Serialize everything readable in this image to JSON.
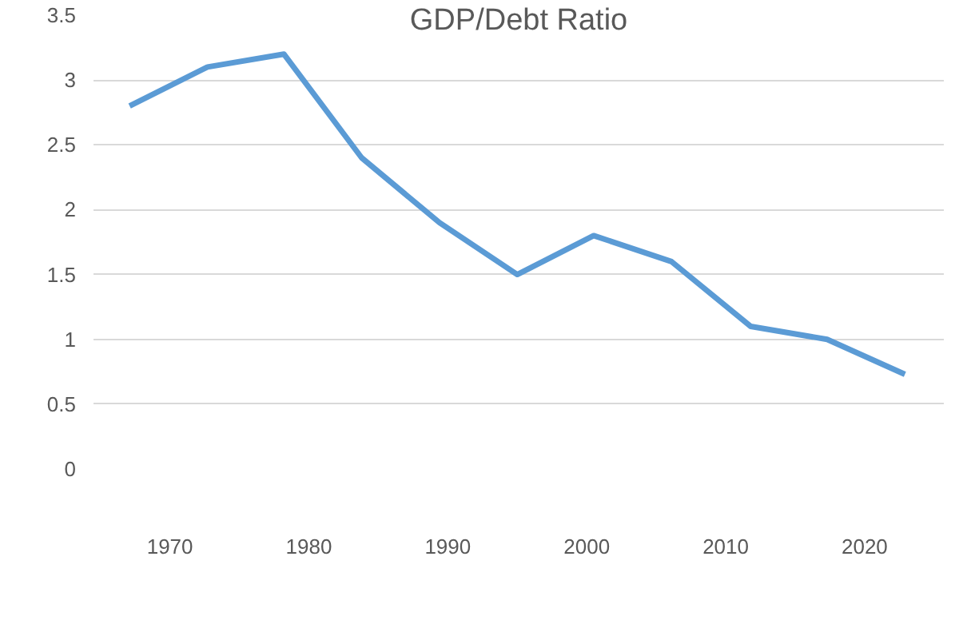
{
  "chart_data": {
    "type": "line",
    "title": "GDP/Debt Ratio",
    "x": [
      1967.1,
      1972.7,
      1978.2,
      1983.8,
      1989.4,
      1995.0,
      2000.5,
      2006.1,
      2011.8,
      2017.3,
      2022.9
    ],
    "series": [
      {
        "color": "#5b9bd5",
        "values": [
          2.8,
          3.1,
          3.2,
          2.4,
          1.9,
          1.5,
          1.8,
          1.6,
          1.1,
          1.0,
          0.73
        ]
      }
    ],
    "xlim": [
      1964.5,
      2025.7
    ],
    "xticks": [
      1970,
      1980,
      1990,
      2000,
      2010,
      2020
    ],
    "ylim": [
      0,
      3.5
    ],
    "yticks": [
      0,
      0.5,
      1,
      1.5,
      2,
      2.5,
      3,
      3.5
    ],
    "grid": "y",
    "marker": "none",
    "line_style": "solid"
  }
}
